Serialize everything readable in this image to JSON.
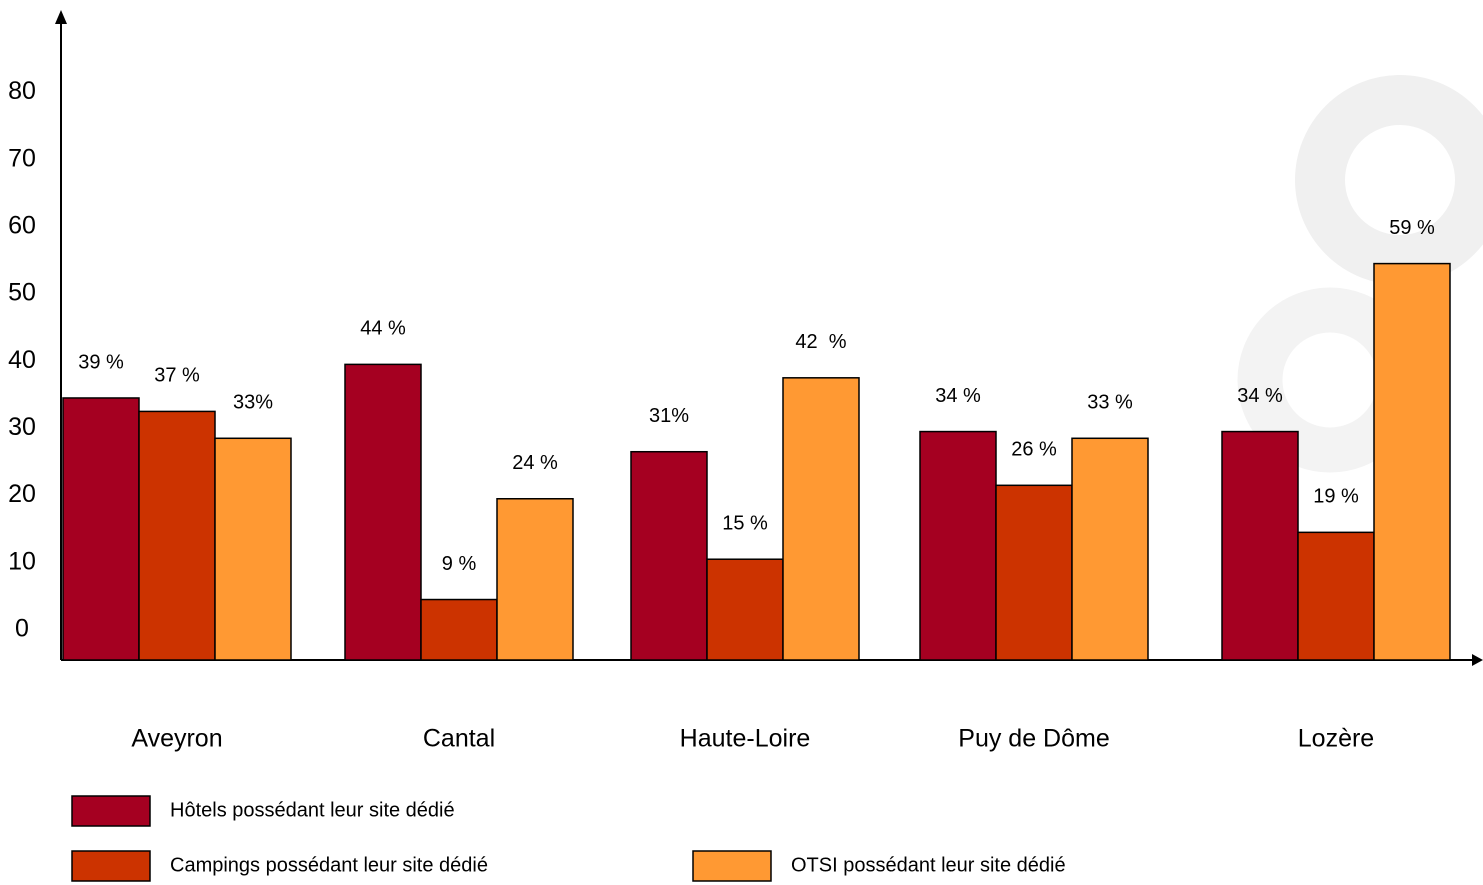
{
  "chart_data": {
    "type": "bar",
    "categories": [
      "Aveyron",
      "Cantal",
      "Haute-Loire",
      "Puy de Dôme",
      "Lozère"
    ],
    "series": [
      {
        "name": "Hôtels possédant leur site dédié",
        "color": "#a50021",
        "values": [
          39,
          44,
          31,
          34,
          34
        ],
        "value_labels": [
          "39 %",
          "44 %",
          "31%",
          "34 %",
          "34 %"
        ]
      },
      {
        "name": "Campings possédant leur site dédié",
        "color": "#cc3300",
        "values": [
          37,
          9,
          15,
          26,
          19
        ],
        "value_labels": [
          "37 %",
          "9 %",
          "15 %",
          "26 %",
          "19 %"
        ]
      },
      {
        "name": "OTSI possédant leur site dédié",
        "color": "#ff9933",
        "values": [
          33,
          24,
          42,
          33,
          59
        ],
        "value_labels": [
          "33%",
          "24 %",
          "42  %",
          "33 %",
          "59 %"
        ]
      }
    ],
    "ylim": [
      0,
      96
    ],
    "yticks": [
      0,
      10,
      20,
      30,
      40,
      50,
      60,
      70,
      80
    ],
    "grid": false
  }
}
